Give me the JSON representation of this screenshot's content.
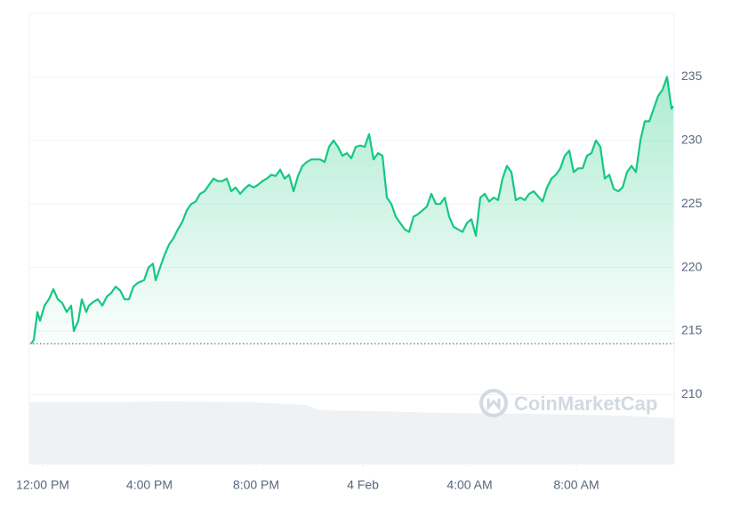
{
  "chart_data": {
    "type": "line",
    "color": "#16c784",
    "watermark": "CoinMarketCap",
    "reference_line": 214,
    "x": [
      -26,
      -20,
      -12,
      -6,
      4,
      14,
      24,
      34,
      44,
      54,
      64,
      70,
      80,
      88,
      98,
      104,
      114,
      124,
      134,
      144,
      154,
      164,
      174,
      184,
      194,
      204,
      214,
      228,
      238,
      248,
      254,
      264,
      274,
      284,
      294,
      304,
      314,
      324,
      334,
      344,
      354,
      364,
      374,
      384,
      394,
      404,
      414,
      424,
      434,
      444,
      454,
      464,
      474,
      484,
      494,
      504,
      514,
      524,
      534,
      544,
      554,
      564,
      574,
      584,
      594,
      604,
      614,
      624,
      634,
      644,
      654,
      664,
      674,
      684,
      694,
      704,
      714,
      724,
      734,
      744,
      754,
      764,
      774,
      784,
      794,
      804,
      814,
      824,
      834,
      844,
      854,
      864,
      874,
      884,
      894,
      904,
      914,
      924,
      934,
      944,
      954,
      964,
      974,
      984,
      994,
      1004,
      1014,
      1024,
      1034,
      1044,
      1054,
      1064,
      1074,
      1084,
      1094,
      1104,
      1114,
      1124,
      1134,
      1144,
      1154,
      1164,
      1174,
      1184,
      1194,
      1204,
      1214,
      1224,
      1234,
      1244,
      1254,
      1264,
      1274,
      1284,
      1294,
      1304,
      1314,
      1324,
      1334,
      1344,
      1354,
      1364,
      1374,
      1384,
      1394,
      1404,
      1414,
      1418
    ],
    "values": [
      214,
      214.3,
      216.5,
      215.8,
      217,
      217.5,
      218.3,
      217.5,
      217.2,
      216.5,
      217,
      215,
      215.8,
      217.5,
      216.5,
      217,
      217.3,
      217.5,
      217,
      217.7,
      218,
      218.5,
      218.2,
      217.5,
      217.5,
      218.5,
      218.8,
      219,
      220,
      220.3,
      219,
      220,
      221,
      221.8,
      222.3,
      223,
      223.6,
      224.5,
      225,
      225.2,
      225.8,
      226,
      226.5,
      227,
      226.8,
      226.8,
      227,
      226,
      226.3,
      225.8,
      226.2,
      226.5,
      226.3,
      226.5,
      226.8,
      227,
      227.3,
      227.2,
      227.7,
      227,
      227.3,
      226,
      227.2,
      228,
      228.3,
      228.5,
      228.5,
      228.5,
      228.3,
      229.5,
      230,
      229.5,
      228.8,
      229,
      228.6,
      229.5,
      229.6,
      229.5,
      230.5,
      228.5,
      229,
      228.8,
      225.5,
      225,
      224,
      223.5,
      223,
      222.8,
      224,
      224.2,
      224.5,
      224.8,
      225.8,
      225,
      225,
      225.5,
      224,
      223.2,
      223,
      222.8,
      223.5,
      223.8,
      222.5,
      225.5,
      225.8,
      225.2,
      225.5,
      225.3,
      227,
      228,
      227.5,
      225.3,
      225.5,
      225.3,
      225.8,
      226,
      225.6,
      225.2,
      226.3,
      227,
      227.3,
      227.8,
      228.8,
      229.2,
      227.5,
      227.8,
      227.8,
      228.8,
      229,
      230,
      229.5,
      227,
      227.3,
      226.2,
      226,
      226.3,
      227.5,
      228,
      227.5,
      230,
      231.5,
      231.5,
      232.5,
      233.5,
      234,
      235,
      232.5,
      232.7
    ],
    "xlim": [
      -30,
      1420
    ],
    "xticks": [
      {
        "value": 0,
        "label": "12:00 PM"
      },
      {
        "value": 240,
        "label": "4:00 PM"
      },
      {
        "value": 480,
        "label": "8:00 PM"
      },
      {
        "value": 720,
        "label": "4 Feb"
      },
      {
        "value": 960,
        "label": "4:00 AM"
      },
      {
        "value": 1200,
        "label": "8:00 AM"
      }
    ],
    "ylim": [
      204.5,
      240
    ],
    "yticks": [
      210,
      215,
      220,
      225,
      230,
      235
    ],
    "grid": true
  }
}
